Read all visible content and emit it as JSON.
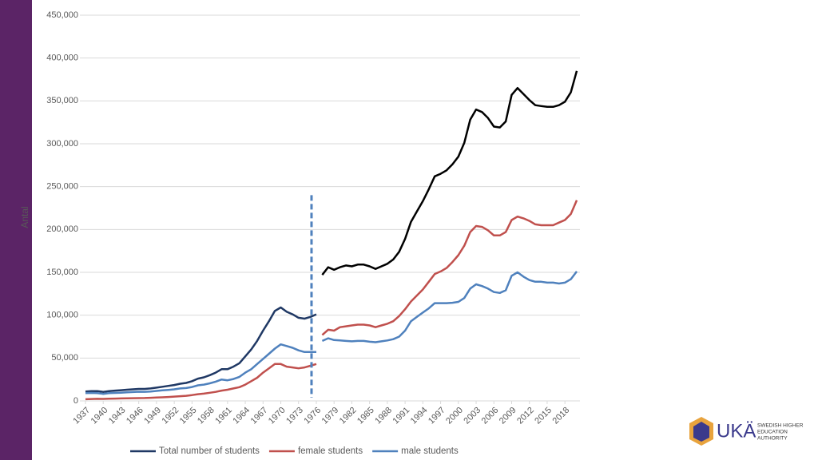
{
  "chart_data": {
    "type": "line",
    "y_label": "Antal",
    "x": [
      1937,
      1938,
      1939,
      1940,
      1941,
      1942,
      1943,
      1944,
      1945,
      1946,
      1947,
      1948,
      1949,
      1950,
      1951,
      1952,
      1953,
      1954,
      1955,
      1956,
      1957,
      1958,
      1959,
      1960,
      1961,
      1962,
      1963,
      1964,
      1965,
      1966,
      1967,
      1968,
      1969,
      1970,
      1971,
      1972,
      1973,
      1974,
      1975,
      1976,
      1977,
      1978,
      1979,
      1980,
      1981,
      1982,
      1983,
      1984,
      1985,
      1986,
      1987,
      1988,
      1989,
      1990,
      1991,
      1992,
      1993,
      1994,
      1995,
      1996,
      1997,
      1998,
      1999,
      2000,
      2001,
      2002,
      2003,
      2004,
      2005,
      2006,
      2007,
      2008,
      2009,
      2010,
      2011,
      2012,
      2013,
      2014,
      2015,
      2016,
      2017,
      2018,
      2019,
      2020
    ],
    "xlim": [
      1937,
      2020
    ],
    "xticks": [
      1937,
      1940,
      1943,
      1946,
      1949,
      1952,
      1955,
      1958,
      1961,
      1964,
      1967,
      1970,
      1973,
      1976,
      1979,
      1982,
      1985,
      1988,
      1991,
      1994,
      1997,
      2000,
      2003,
      2006,
      2009,
      2012,
      2015,
      2018
    ],
    "ylim": [
      0,
      450000
    ],
    "yticks": [
      0,
      {
        "value": 50000,
        "label": "50,000"
      },
      {
        "value": 100000,
        "label": "100,000"
      },
      {
        "value": 150000,
        "label": "150,000"
      },
      {
        "value": 200000,
        "label": "200,000"
      },
      {
        "value": 250000,
        "label": "250,000"
      },
      {
        "value": 300000,
        "label": "300,000"
      },
      {
        "value": 350000,
        "label": "350,000"
      },
      {
        "value": 400000,
        "label": "400,000"
      },
      {
        "value": 450000,
        "label": "450,000"
      }
    ],
    "grid": true,
    "break": 1976,
    "legend": "bottom",
    "series": [
      {
        "name": "Total number of students",
        "color": "#1f3864",
        "color_after_break": "#000000",
        "values": [
          11000,
          11500,
          11500,
          10500,
          11500,
          12000,
          12500,
          13000,
          13500,
          14000,
          14000,
          14500,
          15500,
          16500,
          17500,
          18500,
          20000,
          21000,
          23000,
          26000,
          27500,
          30000,
          33000,
          37000,
          37000,
          40000,
          44000,
          52000,
          60000,
          70000,
          82000,
          93000,
          105000,
          109000,
          104000,
          101000,
          97000,
          96000,
          98000,
          101000,
          147000,
          156000,
          153000,
          156000,
          158000,
          157000,
          159000,
          159000,
          157000,
          154000,
          157000,
          160000,
          165000,
          174000,
          189000,
          209000,
          221000,
          233000,
          247000,
          262000,
          265000,
          269000,
          276000,
          285000,
          301000,
          328000,
          340000,
          337000,
          330000,
          320000,
          319000,
          326000,
          357000,
          365000,
          358000,
          351000,
          345000,
          344000,
          343000,
          343000,
          345000,
          349000,
          360000,
          385000
        ]
      },
      {
        "name": "female students",
        "color": "#c0504d",
        "values": [
          2000,
          2200,
          2400,
          2300,
          2500,
          2700,
          2900,
          3000,
          3200,
          3300,
          3400,
          3600,
          3900,
          4200,
          4600,
          5000,
          5500,
          6000,
          6800,
          7800,
          8500,
          9500,
          10500,
          12000,
          13000,
          14500,
          16000,
          19000,
          23000,
          27000,
          33000,
          38000,
          43000,
          43000,
          40000,
          39000,
          38000,
          39000,
          41000,
          43000,
          77000,
          83000,
          82000,
          86000,
          87000,
          88000,
          89000,
          89000,
          88000,
          86000,
          88000,
          90000,
          93000,
          99000,
          107000,
          116000,
          123000,
          130000,
          139000,
          148000,
          151000,
          155000,
          162000,
          170000,
          181000,
          197000,
          204000,
          203000,
          199000,
          193000,
          193000,
          197000,
          211000,
          215000,
          213000,
          210000,
          206000,
          205000,
          205000,
          205000,
          208000,
          211000,
          218000,
          234000
        ]
      },
      {
        "name": "male students",
        "color": "#4f81bd",
        "values": [
          9000,
          9300,
          9100,
          8200,
          9000,
          9300,
          9600,
          10000,
          10300,
          10700,
          10600,
          10900,
          11600,
          12300,
          12900,
          13500,
          14500,
          15000,
          16200,
          18200,
          19000,
          20500,
          22500,
          25000,
          24000,
          25500,
          28000,
          33000,
          37000,
          43000,
          49000,
          55000,
          61000,
          66000,
          64000,
          62000,
          59000,
          57000,
          57000,
          57000,
          70000,
          73000,
          71000,
          70500,
          70000,
          69500,
          70000,
          70000,
          69000,
          68500,
          69500,
          70500,
          72000,
          75000,
          82000,
          93000,
          98000,
          103000,
          108000,
          114000,
          114000,
          114000,
          114500,
          115500,
          120000,
          131000,
          136000,
          134000,
          131000,
          127000,
          126000,
          129000,
          146000,
          150000,
          145000,
          141000,
          139000,
          139000,
          138000,
          138000,
          137000,
          138000,
          142000,
          151000
        ]
      }
    ]
  },
  "logo": {
    "name": "UKÄ",
    "lines": [
      "SWEDISH HIGHER",
      "EDUCATION",
      "AUTHORITY"
    ]
  }
}
